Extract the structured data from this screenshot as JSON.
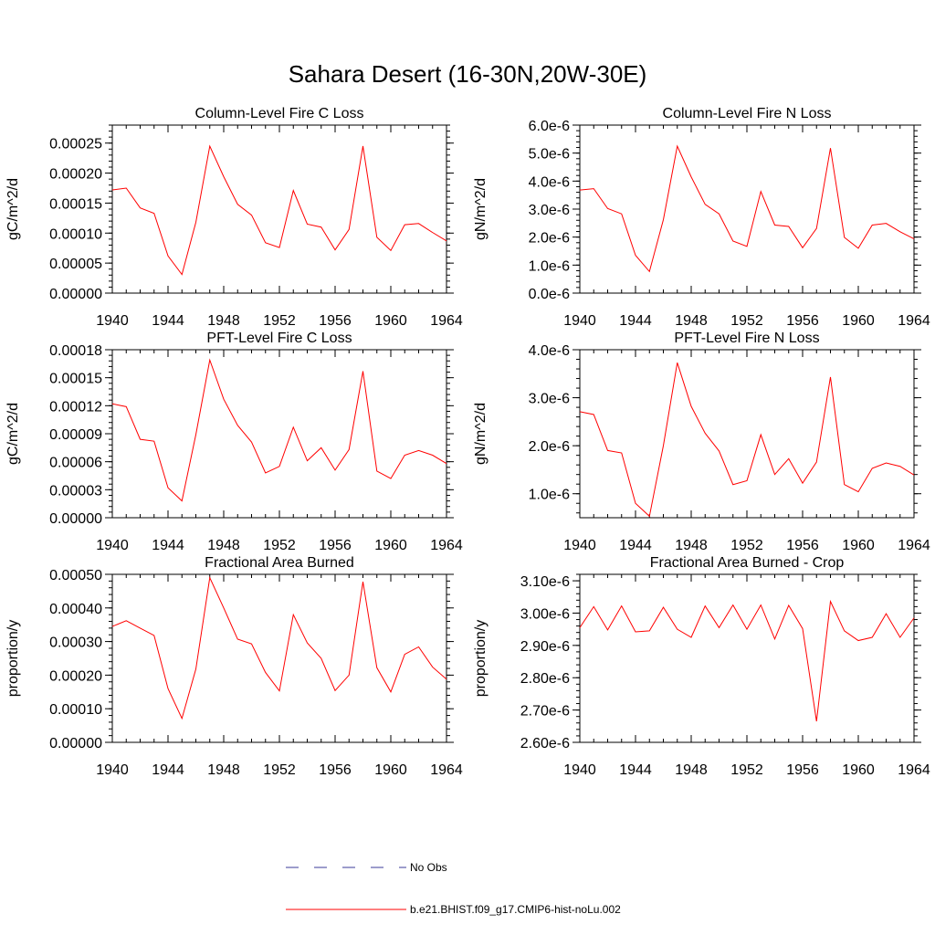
{
  "figure_title": "Sahara Desert (16-30N,20W-30E)",
  "colors": {
    "model": "#ff0000",
    "obs": "#3b3b9a",
    "axis": "#000000"
  },
  "legend": {
    "entries": [
      {
        "label": "No Obs",
        "style": "dashed",
        "color": "#3b3b9a"
      },
      {
        "label": "b.e21.BHIST.f09_g17.CMIP6-hist-noLu.002",
        "style": "solid",
        "color": "#ff0000"
      }
    ]
  },
  "chart_data": [
    {
      "type": "line",
      "title": "Column-Level Fire C Loss",
      "ylabel": "gC/m^2/d",
      "xlim": [
        1940,
        1964
      ],
      "ylim": [
        0,
        0.00028
      ],
      "xticks": [
        1940,
        1944,
        1948,
        1952,
        1956,
        1960,
        1964
      ],
      "yticks": [
        0,
        5e-05,
        0.0001,
        0.00015,
        0.0002,
        0.00025
      ],
      "ytick_labels": [
        "0.00000",
        "0.00005",
        "0.00010",
        "0.00015",
        "0.00020",
        "0.00025"
      ],
      "series": [
        {
          "x": [
            1940,
            1941,
            1942,
            1943,
            1944,
            1945,
            1946,
            1947,
            1948,
            1949,
            1950,
            1951,
            1952,
            1953,
            1954,
            1955,
            1956,
            1957,
            1958,
            1959,
            1960,
            1961,
            1962,
            1963,
            1964
          ],
          "values": [
            0.000172,
            0.000175,
            0.000142,
            0.000133,
            6.2e-05,
            3.1e-05,
            0.000118,
            0.000245,
            0.000194,
            0.000148,
            0.00013,
            8.4e-05,
            7.6e-05,
            0.000171,
            0.000115,
            0.00011,
            7.2e-05,
            0.000106,
            0.000245,
            9.3e-05,
            7.1e-05,
            0.000114,
            0.000116,
            0.000101,
            8.7e-05
          ]
        }
      ]
    },
    {
      "type": "line",
      "title": "Column-Level Fire N Loss",
      "ylabel": "gN/m^2/d",
      "xlim": [
        1940,
        1964
      ],
      "ylim": [
        0,
        6e-06
      ],
      "xticks": [
        1940,
        1944,
        1948,
        1952,
        1956,
        1960,
        1964
      ],
      "yticks": [
        0,
        1e-06,
        2e-06,
        3e-06,
        4e-06,
        5e-06,
        6e-06
      ],
      "ytick_labels": [
        "0.0e-6",
        "1.0e-6",
        "2.0e-6",
        "3.0e-6",
        "4.0e-6",
        "5.0e-6",
        "6.0e-6"
      ],
      "series": [
        {
          "x": [
            1940,
            1941,
            1942,
            1943,
            1944,
            1945,
            1946,
            1947,
            1948,
            1949,
            1950,
            1951,
            1952,
            1953,
            1954,
            1955,
            1956,
            1957,
            1958,
            1959,
            1960,
            1961,
            1962,
            1963,
            1964
          ],
          "values": [
            3.68e-06,
            3.73e-06,
            3.02e-06,
            2.83e-06,
            1.35e-06,
            7.7e-07,
            2.62e-06,
            5.25e-06,
            4.15e-06,
            3.17e-06,
            2.83e-06,
            1.86e-06,
            1.67e-06,
            3.63e-06,
            2.43e-06,
            2.38e-06,
            1.62e-06,
            2.31e-06,
            5.18e-06,
            1.99e-06,
            1.6e-06,
            2.43e-06,
            2.49e-06,
            2.19e-06,
            1.94e-06
          ]
        }
      ]
    },
    {
      "type": "line",
      "title": "PFT-Level Fire C Loss",
      "ylabel": "gC/m^2/d",
      "xlim": [
        1940,
        1964
      ],
      "ylim": [
        0,
        0.00018
      ],
      "xticks": [
        1940,
        1944,
        1948,
        1952,
        1956,
        1960,
        1964
      ],
      "yticks": [
        0,
        3e-05,
        6e-05,
        9e-05,
        0.00012,
        0.00015,
        0.00018
      ],
      "ytick_labels": [
        "0.00000",
        "0.00003",
        "0.00006",
        "0.00009",
        "0.00012",
        "0.00015",
        "0.00018"
      ],
      "series": [
        {
          "x": [
            1940,
            1941,
            1942,
            1943,
            1944,
            1945,
            1946,
            1947,
            1948,
            1949,
            1950,
            1951,
            1952,
            1953,
            1954,
            1955,
            1956,
            1957,
            1958,
            1959,
            1960,
            1961,
            1962,
            1963,
            1964
          ],
          "values": [
            0.000122,
            0.000119,
            8.4e-05,
            8.2e-05,
            3.2e-05,
            1.8e-05,
            8.9e-05,
            0.000169,
            0.000127,
            9.9e-05,
            8.1e-05,
            4.8e-05,
            5.5e-05,
            9.7e-05,
            6.1e-05,
            7.5e-05,
            5.1e-05,
            7.3e-05,
            0.000157,
            5e-05,
            4.2e-05,
            6.7e-05,
            7.2e-05,
            6.7e-05,
            5.8e-05
          ]
        }
      ]
    },
    {
      "type": "line",
      "title": "PFT-Level Fire N Loss",
      "ylabel": "gN/m^2/d",
      "xlim": [
        1940,
        1964
      ],
      "ylim": [
        5e-07,
        4e-06
      ],
      "xticks": [
        1940,
        1944,
        1948,
        1952,
        1956,
        1960,
        1964
      ],
      "yticks": [
        1e-06,
        2e-06,
        3e-06,
        4e-06
      ],
      "ytick_labels": [
        "1.0e-6",
        "2.0e-6",
        "3.0e-6",
        "4.0e-6"
      ],
      "series": [
        {
          "x": [
            1940,
            1941,
            1942,
            1943,
            1944,
            1945,
            1946,
            1947,
            1948,
            1949,
            1950,
            1951,
            1952,
            1953,
            1954,
            1955,
            1956,
            1957,
            1958,
            1959,
            1960,
            1961,
            1962,
            1963,
            1964
          ],
          "values": [
            2.71e-06,
            2.65e-06,
            1.9e-06,
            1.85e-06,
            8e-07,
            5.3e-07,
            2e-06,
            3.73e-06,
            2.82e-06,
            2.26e-06,
            1.89e-06,
            1.19e-06,
            1.27e-06,
            2.23e-06,
            1.4e-06,
            1.73e-06,
            1.22e-06,
            1.66e-06,
            3.43e-06,
            1.19e-06,
            1.04e-06,
            1.53e-06,
            1.64e-06,
            1.57e-06,
            1.39e-06
          ]
        }
      ]
    },
    {
      "type": "line",
      "title": "Fractional Area Burned",
      "ylabel": "proportion/y",
      "xlim": [
        1940,
        1964
      ],
      "ylim": [
        0,
        0.0005
      ],
      "xticks": [
        1940,
        1944,
        1948,
        1952,
        1956,
        1960,
        1964
      ],
      "yticks": [
        0,
        0.0001,
        0.0002,
        0.0003,
        0.0004,
        0.0005
      ],
      "ytick_labels": [
        "0.00000",
        "0.00010",
        "0.00020",
        "0.00030",
        "0.00040",
        "0.00050"
      ],
      "series": [
        {
          "x": [
            1940,
            1941,
            1942,
            1943,
            1944,
            1945,
            1946,
            1947,
            1948,
            1949,
            1950,
            1951,
            1952,
            1953,
            1954,
            1955,
            1956,
            1957,
            1958,
            1959,
            1960,
            1961,
            1962,
            1963,
            1964
          ],
          "values": [
            0.000345,
            0.000362,
            0.00034,
            0.000318,
            0.00016,
            7.1e-05,
            0.000218,
            0.00049,
            0.0004,
            0.000307,
            0.000293,
            0.000208,
            0.000153,
            0.00038,
            0.000296,
            0.00025,
            0.000154,
            0.0002,
            0.000478,
            0.000222,
            0.00015,
            0.000262,
            0.000284,
            0.000224,
            0.000188
          ]
        }
      ]
    },
    {
      "type": "line",
      "title": "Fractional Area Burned - Crop",
      "ylabel": "proportion/y",
      "xlim": [
        1940,
        1964
      ],
      "ylim": [
        2.6e-06,
        3.12e-06
      ],
      "xticks": [
        1940,
        1944,
        1948,
        1952,
        1956,
        1960,
        1964
      ],
      "yticks": [
        2.6e-06,
        2.7e-06,
        2.8e-06,
        2.9e-06,
        3e-06,
        3.1e-06
      ],
      "ytick_labels": [
        "2.60e-6",
        "2.70e-6",
        "2.80e-6",
        "2.90e-6",
        "3.00e-6",
        "3.10e-6"
      ],
      "series": [
        {
          "x": [
            1940,
            1941,
            1942,
            1943,
            1944,
            1945,
            1946,
            1947,
            1948,
            1949,
            1950,
            1951,
            1952,
            1953,
            1954,
            1955,
            1956,
            1957,
            1958,
            1959,
            1960,
            1961,
            1962,
            1963,
            1964
          ],
          "values": [
            2.955e-06,
            3.02e-06,
            2.948e-06,
            3.022e-06,
            2.942e-06,
            2.945e-06,
            3.018e-06,
            2.95e-06,
            2.925e-06,
            3.022e-06,
            2.955e-06,
            3.025e-06,
            2.95e-06,
            3.025e-06,
            2.92e-06,
            3.024e-06,
            2.952e-06,
            2.665e-06,
            3.036e-06,
            2.945e-06,
            2.915e-06,
            2.925e-06,
            2.998e-06,
            2.925e-06,
            2.985e-06
          ]
        }
      ]
    }
  ]
}
